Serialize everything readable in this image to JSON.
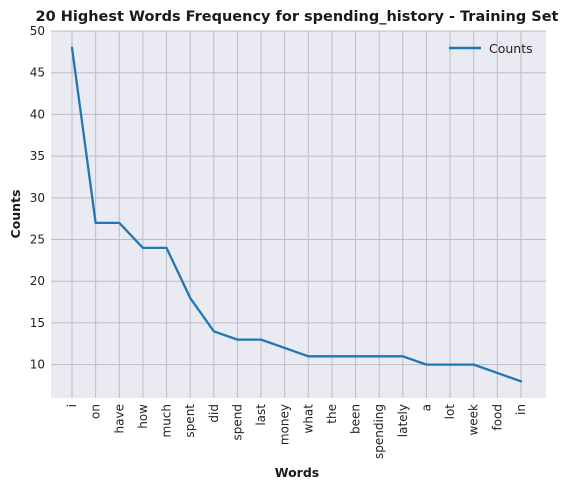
{
  "chart_data": {
    "type": "line",
    "title": "20 Highest Words Frequency for spending_history - Training Set",
    "xlabel": "Words",
    "ylabel": "Counts",
    "categories": [
      "i",
      "on",
      "have",
      "how",
      "much",
      "spent",
      "did",
      "spend",
      "last",
      "money",
      "what",
      "the",
      "been",
      "spending",
      "lately",
      "a",
      "lot",
      "week",
      "food",
      "in"
    ],
    "series": [
      {
        "name": "Counts",
        "values": [
          48,
          27,
          27,
          24,
          24,
          18,
          14,
          13,
          13,
          12,
          11,
          11,
          11,
          11,
          11,
          10,
          10,
          10,
          9,
          8
        ],
        "color": "#1f77b4"
      }
    ],
    "yticks": [
      10,
      15,
      20,
      25,
      30,
      35,
      40,
      45,
      50
    ],
    "ylim": [
      6,
      50
    ],
    "grid": true,
    "legend_position": "top-right",
    "background_color": "#eaeaf2",
    "grid_color": "#bcbcc4"
  }
}
